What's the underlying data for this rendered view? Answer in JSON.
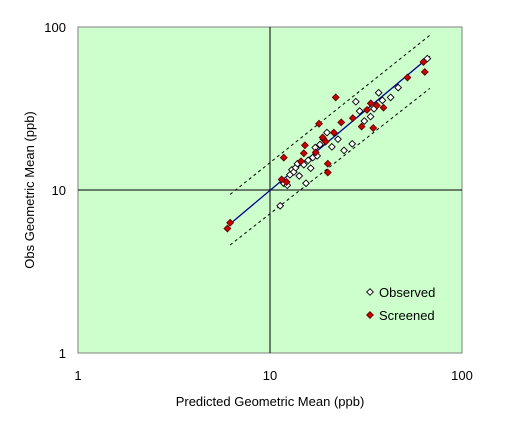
{
  "chart_data": {
    "type": "scatter",
    "xlabel": "Predicted Geometric Mean (ppb)",
    "ylabel": "Obs Geometric Mean (ppb)",
    "x_scale": "log",
    "y_scale": "log",
    "xlim": [
      1,
      100
    ],
    "ylim": [
      1,
      100
    ],
    "x_ticks": [
      "1",
      "10",
      "100"
    ],
    "y_ticks": [
      "1",
      "10",
      "100"
    ],
    "grid": "major lines at 10 on both axes",
    "legend_position": "bottom-right",
    "colors": {
      "plot_background": "#ccffcc",
      "regression_line": "#00008b",
      "screened_marker": "#cc0000",
      "observed_marker": "#ffffff",
      "confidence_band": "#000000"
    },
    "regression_line": {
      "x": [
        6.2,
        68
      ],
      "y": [
        6.2,
        66
      ]
    },
    "confidence_band_upper": {
      "x": [
        6.2,
        68
      ],
      "y": [
        9.4,
        89
      ]
    },
    "confidence_band_lower": {
      "x": [
        6.2,
        68
      ],
      "y": [
        4.6,
        42
      ]
    },
    "series": [
      {
        "name": "Observed",
        "marker": "open-diamond",
        "points": [
          [
            11.3,
            8
          ],
          [
            11.8,
            11
          ],
          [
            12.3,
            10.7
          ],
          [
            12.7,
            12.4
          ],
          [
            13.0,
            13.3
          ],
          [
            13.3,
            12.9
          ],
          [
            13.6,
            13.7
          ],
          [
            13.9,
            14.5
          ],
          [
            14.2,
            12.2
          ],
          [
            14.6,
            14.8
          ],
          [
            15.0,
            14.3
          ],
          [
            15.4,
            11.0
          ],
          [
            15.8,
            15.2
          ],
          [
            16.3,
            13.6
          ],
          [
            16.7,
            15.8
          ],
          [
            17.2,
            18.2
          ],
          [
            17.6,
            16.2
          ],
          [
            18.2,
            19.0
          ],
          [
            19.0,
            20.5
          ],
          [
            19.8,
            22.5
          ],
          [
            21.0,
            18.4
          ],
          [
            22.6,
            20.5
          ],
          [
            24.3,
            17.5
          ],
          [
            26.8,
            19.2
          ],
          [
            28.0,
            34.8
          ],
          [
            29.3,
            30.5
          ],
          [
            31.0,
            26.5
          ],
          [
            33.4,
            28.2
          ],
          [
            34.8,
            31.5
          ],
          [
            36.8,
            39.5
          ],
          [
            38.5,
            35.5
          ],
          [
            42.5,
            37.0
          ],
          [
            46.5,
            42.5
          ],
          [
            66.0,
            64.0
          ]
        ]
      },
      {
        "name": "Screened",
        "marker": "filled-diamond",
        "points": [
          [
            6.0,
            5.8
          ],
          [
            6.2,
            6.3
          ],
          [
            11.5,
            11.6
          ],
          [
            11.8,
            15.8
          ],
          [
            12.2,
            11.2
          ],
          [
            14.5,
            15.0
          ],
          [
            15.0,
            16.8
          ],
          [
            15.2,
            18.8
          ],
          [
            17.3,
            17.0
          ],
          [
            18.0,
            25.5
          ],
          [
            18.8,
            21.0
          ],
          [
            19.5,
            19.8
          ],
          [
            20.0,
            14.5
          ],
          [
            20.0,
            12.8
          ],
          [
            21.5,
            22.5
          ],
          [
            22.0,
            37.0
          ],
          [
            23.5,
            26.0
          ],
          [
            27.0,
            27.6
          ],
          [
            30.0,
            24.5
          ],
          [
            32.0,
            31.0
          ],
          [
            33.5,
            34.0
          ],
          [
            34.5,
            24.0
          ],
          [
            36.0,
            33.0
          ],
          [
            39.0,
            32.0
          ],
          [
            52.0,
            49.0
          ],
          [
            63.0,
            61.0
          ],
          [
            64.0,
            53.0
          ]
        ]
      }
    ]
  }
}
